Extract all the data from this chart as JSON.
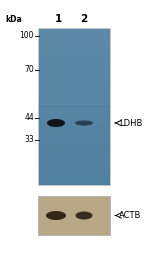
{
  "white_bg": "#ffffff",
  "gel_bg": "#5080a0",
  "gel2_bg": "#b8a888",
  "label_color": "#000000",
  "kda_label": "kDa",
  "lane_labels": [
    "1",
    "2"
  ],
  "marker_kda": [
    100,
    70,
    44,
    33
  ],
  "band1_label": "LDHB",
  "band2_label": "ACTB",
  "font_size_kda": 5.5,
  "font_size_lane": 7.5,
  "font_size_label": 6.0,
  "font_size_marker": 5.5
}
